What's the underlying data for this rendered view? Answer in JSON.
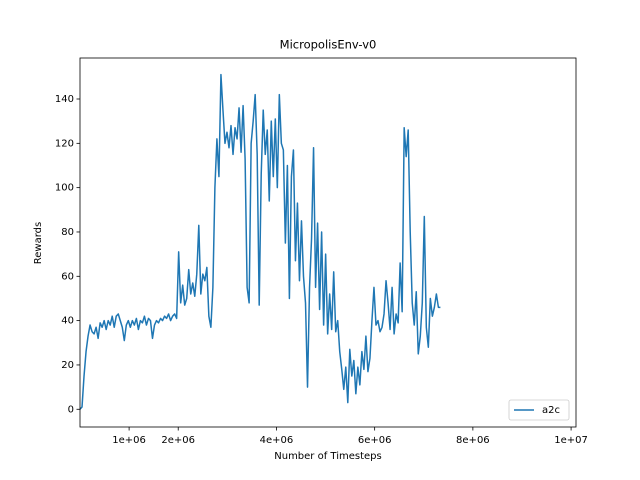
{
  "chart_data": {
    "type": "line",
    "title": "MicropolisEnv-v0",
    "x_label": "Number of Timesteps",
    "y_label": "Rewards",
    "xlim": [
      0,
      10100000
    ],
    "ylim": [
      -8,
      158.5
    ],
    "xticks": [
      {
        "value": 1000000,
        "label": "1e+06"
      },
      {
        "value": 2000000,
        "label": "2e+06"
      },
      {
        "value": 4000000,
        "label": "4e+06"
      },
      {
        "value": 6000000,
        "label": "6e+06"
      },
      {
        "value": 8000000,
        "label": "8e+06"
      },
      {
        "value": 10000000,
        "label": "1e+07"
      }
    ],
    "yticks": [
      0,
      20,
      40,
      60,
      80,
      100,
      120,
      140
    ],
    "legend": "lower right",
    "x": [
      0,
      41000,
      82000,
      123000,
      164000,
      205000,
      246000,
      287000,
      328000,
      369000,
      410000,
      451000,
      492000,
      533000,
      574000,
      615000,
      656000,
      697000,
      738000,
      779000,
      820000,
      861000,
      902000,
      943000,
      984000,
      1025000,
      1066000,
      1107000,
      1148000,
      1189000,
      1230000,
      1271000,
      1312000,
      1353000,
      1394000,
      1435000,
      1476000,
      1517000,
      1558000,
      1599000,
      1640000,
      1681000,
      1722000,
      1763000,
      1804000,
      1845000,
      1886000,
      1927000,
      1968000,
      2009000,
      2050000,
      2091000,
      2132000,
      2173000,
      2214000,
      2255000,
      2296000,
      2337000,
      2378000,
      2419000,
      2460000,
      2501000,
      2542000,
      2583000,
      2624000,
      2665000,
      2706000,
      2747000,
      2788000,
      2829000,
      2870000,
      2911000,
      2952000,
      2993000,
      3034000,
      3075000,
      3116000,
      3157000,
      3198000,
      3239000,
      3280000,
      3321000,
      3362000,
      3403000,
      3444000,
      3485000,
      3526000,
      3567000,
      3608000,
      3649000,
      3690000,
      3731000,
      3772000,
      3813000,
      3854000,
      3895000,
      3936000,
      3977000,
      4018000,
      4059000,
      4100000,
      4141000,
      4182000,
      4223000,
      4264000,
      4305000,
      4346000,
      4387000,
      4428000,
      4469000,
      4510000,
      4551000,
      4592000,
      4633000,
      4674000,
      4715000,
      4756000,
      4797000,
      4838000,
      4879000,
      4920000,
      4961000,
      5002000,
      5043000,
      5084000,
      5125000,
      5166000,
      5207000,
      5248000,
      5289000,
      5330000,
      5371000,
      5412000,
      5453000,
      5494000,
      5535000,
      5576000,
      5617000,
      5658000,
      5699000,
      5740000,
      5781000,
      5822000,
      5863000,
      5904000,
      5945000,
      5986000,
      6027000,
      6068000,
      6109000,
      6150000,
      6191000,
      6232000,
      6273000,
      6314000,
      6355000,
      6396000,
      6437000,
      6478000,
      6519000,
      6560000,
      6601000,
      6642000,
      6683000,
      6724000,
      6765000,
      6806000,
      6847000,
      6888000,
      6929000,
      6970000,
      7011000,
      7052000,
      7093000,
      7134000,
      7175000,
      7216000,
      7257000,
      7298000,
      7339000
    ],
    "series": [
      {
        "name": "a2c",
        "color": "#1f77b4",
        "values": [
          0,
          1,
          15,
          26,
          33,
          38,
          35,
          34,
          37,
          32,
          39,
          37,
          40,
          36,
          40,
          38,
          42,
          37,
          42,
          43,
          40,
          37,
          31,
          38,
          40,
          37,
          40,
          38,
          41,
          36,
          40,
          39,
          42,
          38,
          41,
          40,
          32,
          38,
          40,
          39,
          41,
          40,
          42,
          41,
          43,
          40,
          42,
          43,
          41,
          71,
          48,
          56,
          47,
          50,
          63,
          52,
          57,
          51,
          61,
          83,
          52,
          61,
          58,
          64,
          42,
          37,
          55,
          100,
          122,
          105,
          151,
          135,
          120,
          125,
          118,
          128,
          115,
          127,
          122,
          136,
          116,
          137,
          113,
          55,
          48,
          120,
          130,
          142,
          115,
          47,
          106,
          135,
          115,
          126,
          94,
          130,
          105,
          131,
          100,
          142,
          120,
          117,
          75,
          110,
          50,
          105,
          117,
          67,
          93,
          58,
          85,
          60,
          48,
          10,
          55,
          77,
          118,
          55,
          84,
          45,
          80,
          38,
          70,
          34,
          52,
          36,
          62,
          35,
          40,
          26,
          18,
          9,
          19,
          3,
          27,
          15,
          22,
          7,
          19,
          11,
          26,
          18,
          33,
          17,
          23,
          40,
          55,
          38,
          40,
          35,
          37,
          43,
          58,
          48,
          36,
          55,
          34,
          43,
          39,
          66,
          44,
          127,
          114,
          126,
          80,
          48,
          38,
          53,
          25,
          33,
          48,
          87,
          37,
          28,
          50,
          42,
          46,
          52,
          46,
          46
        ]
      }
    ]
  }
}
